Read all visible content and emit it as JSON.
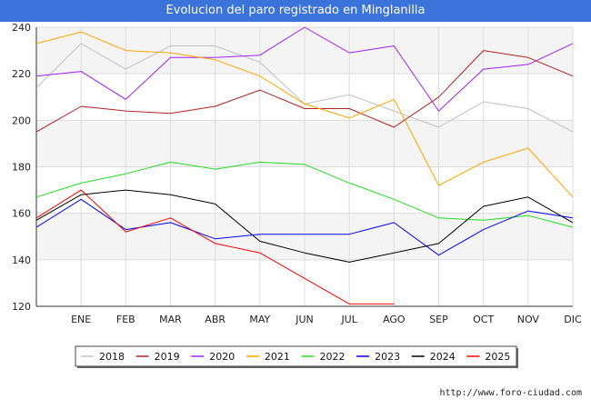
{
  "chart_data": {
    "type": "line",
    "title": "Evolucion del paro registrado en Minglanilla",
    "xlabel": "",
    "ylabel": "",
    "categories": [
      "",
      "ENE",
      "FEB",
      "MAR",
      "ABR",
      "MAY",
      "JUN",
      "JUL",
      "AGO",
      "SEP",
      "OCT",
      "NOV",
      "DIC"
    ],
    "ylim": [
      120,
      240
    ],
    "yticks": [
      120,
      140,
      160,
      180,
      200,
      220,
      240
    ],
    "legend_position": "bottom",
    "grid": true,
    "series": [
      {
        "name": "2018",
        "color": "#c0c0c0",
        "values": [
          214,
          233,
          222,
          232,
          232,
          225,
          207,
          211,
          204,
          197,
          208,
          205,
          195
        ]
      },
      {
        "name": "2019",
        "color": "#b22222",
        "values": [
          195,
          206,
          204,
          203,
          206,
          213,
          205,
          205,
          197,
          210,
          230,
          227,
          219
        ]
      },
      {
        "name": "2020",
        "color": "#a020f0",
        "values": [
          219,
          221,
          209,
          227,
          227,
          228,
          240,
          229,
          232,
          204,
          222,
          224,
          233
        ]
      },
      {
        "name": "2021",
        "color": "#ffa500",
        "values": [
          233,
          238,
          230,
          229,
          226,
          219,
          207,
          201,
          209,
          172,
          182,
          188,
          167
        ]
      },
      {
        "name": "2022",
        "color": "#22dd22",
        "values": [
          167,
          173,
          177,
          182,
          179,
          182,
          181,
          173,
          166,
          158,
          157,
          159,
          154
        ]
      },
      {
        "name": "2023",
        "color": "#0000ff",
        "values": [
          154,
          166,
          153,
          156,
          149,
          151,
          151,
          151,
          156,
          142,
          153,
          161,
          158
        ]
      },
      {
        "name": "2024",
        "color": "#000000",
        "values": [
          157,
          168,
          170,
          168,
          164,
          148,
          143,
          139,
          143,
          147,
          163,
          167,
          156
        ]
      },
      {
        "name": "2025",
        "color": "#ff0000",
        "values": [
          158,
          170,
          152,
          158,
          147,
          143,
          132,
          121,
          121,
          null,
          null,
          null,
          null
        ]
      }
    ]
  },
  "footer": {
    "credit": "http://www.foro-ciudad.com"
  }
}
